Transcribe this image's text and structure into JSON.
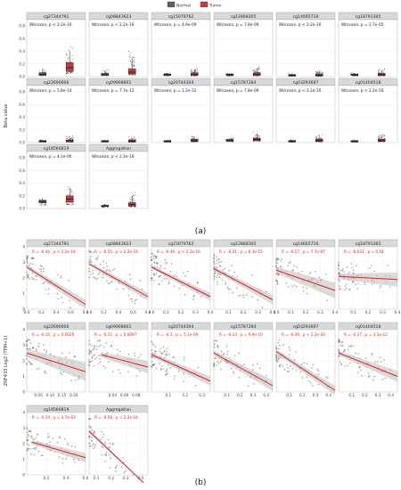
{
  "colors": {
    "normal": "#5f5f5f",
    "tumor": "#c23c3c",
    "strip": "#d9d9d9",
    "grid": "#ebebeb",
    "fit": "#e02020",
    "band": "#bdbdbd"
  },
  "panel_labels": {
    "a": "(a)",
    "b": "(b)"
  },
  "chart_data": [
    {
      "type": "box",
      "legend": {
        "entries": [
          "Normal",
          "Tumor"
        ],
        "placement": "top"
      },
      "ylabel": "Beta value",
      "ylim": [
        0,
        0.9
      ],
      "yticks": [
        "0.0",
        "0.2",
        "0.4",
        "0.6",
        "0.8"
      ],
      "panels": [
        {
          "name": "cg27344791",
          "stat": "Wilcoxon, p < 2.2e-16",
          "normal": {
            "q1": 0.02,
            "median": 0.04,
            "q3": 0.06,
            "whisker_high": 0.12
          },
          "tumor": {
            "q1": 0.08,
            "median": 0.14,
            "q3": 0.22,
            "whisker_high": 0.4
          }
        },
        {
          "name": "cg08843623",
          "stat": "Wilcoxon, p < 2.2e-16",
          "normal": {
            "q1": 0.02,
            "median": 0.03,
            "q3": 0.05,
            "whisker_high": 0.1
          },
          "tumor": {
            "q1": 0.04,
            "median": 0.07,
            "q3": 0.12,
            "whisker_high": 0.3
          }
        },
        {
          "name": "cg15079762",
          "stat": "Wilcoxon, p = 4.9e-09",
          "normal": {
            "q1": 0.02,
            "median": 0.03,
            "q3": 0.04,
            "whisker_high": 0.06
          },
          "tumor": {
            "q1": 0.02,
            "median": 0.04,
            "q3": 0.06,
            "whisker_high": 0.12
          }
        },
        {
          "name": "cg12868305",
          "stat": "Wilcoxon, p = 7.8e-09",
          "normal": {
            "q1": 0.02,
            "median": 0.03,
            "q3": 0.04,
            "whisker_high": 0.06
          },
          "tumor": {
            "q1": 0.02,
            "median": 0.04,
            "q3": 0.06,
            "whisker_high": 0.12
          }
        },
        {
          "name": "cg14665716",
          "stat": "Wilcoxon, p < 2.2e-16",
          "normal": {
            "q1": 0.01,
            "median": 0.02,
            "q3": 0.03,
            "whisker_high": 0.05
          },
          "tumor": {
            "q1": 0.01,
            "median": 0.02,
            "q3": 0.04,
            "whisker_high": 0.08
          }
        },
        {
          "name": "cg18791365",
          "stat": "Wilcoxon, p = 2.7e-05",
          "normal": {
            "q1": 0.02,
            "median": 0.03,
            "q3": 0.04,
            "whisker_high": 0.06
          },
          "tumor": {
            "q1": 0.02,
            "median": 0.03,
            "q3": 0.05,
            "whisker_high": 0.1
          }
        },
        {
          "name": "cg22690006",
          "stat": "Wilcoxon, p = 5.8e-14",
          "normal": {
            "q1": 0.01,
            "median": 0.02,
            "q3": 0.03,
            "whisker_high": 0.04
          },
          "tumor": {
            "q1": 0.01,
            "median": 0.03,
            "q3": 0.04,
            "whisker_high": 0.08
          }
        },
        {
          "name": "cg09908601",
          "stat": "Wilcoxon, p = 7.7e-12",
          "normal": {
            "q1": 0.01,
            "median": 0.02,
            "q3": 0.03,
            "whisker_high": 0.04
          },
          "tumor": {
            "q1": 0.01,
            "median": 0.02,
            "q3": 0.04,
            "whisker_high": 0.07
          }
        },
        {
          "name": "cg20744304",
          "stat": "Wilcoxon, p = 1.2e-12",
          "normal": {
            "q1": 0.01,
            "median": 0.02,
            "q3": 0.03,
            "whisker_high": 0.04
          },
          "tumor": {
            "q1": 0.02,
            "median": 0.03,
            "q3": 0.05,
            "whisker_high": 0.09
          }
        },
        {
          "name": "cg15787284",
          "stat": "Wilcoxon, p = 7.8e-09",
          "normal": {
            "q1": 0.02,
            "median": 0.03,
            "q3": 0.05,
            "whisker_high": 0.07
          },
          "tumor": {
            "q1": 0.03,
            "median": 0.05,
            "q3": 0.07,
            "whisker_high": 0.14
          }
        },
        {
          "name": "cg03293697",
          "stat": "Wilcoxon, p < 2.2e-16",
          "normal": {
            "q1": 0.01,
            "median": 0.02,
            "q3": 0.03,
            "whisker_high": 0.04
          },
          "tumor": {
            "q1": 0.02,
            "median": 0.03,
            "q3": 0.05,
            "whisker_high": 0.1
          }
        },
        {
          "name": "cg01404518",
          "stat": "Wilcoxon, p < 2.2e-16",
          "normal": {
            "q1": 0.01,
            "median": 0.02,
            "q3": 0.03,
            "whisker_high": 0.04
          },
          "tumor": {
            "q1": 0.02,
            "median": 0.03,
            "q3": 0.05,
            "whisker_high": 0.12
          }
        },
        {
          "name": "cg18566819",
          "stat": "Wilcoxon, p = 4.1e-06",
          "normal": {
            "q1": 0.09,
            "median": 0.11,
            "q3": 0.13,
            "whisker_high": 0.17
          },
          "tumor": {
            "q1": 0.1,
            "median": 0.15,
            "q3": 0.2,
            "whisker_high": 0.32
          }
        },
        {
          "name": "Aggregation",
          "stat": "Wilcoxon, p < 2.2e-16",
          "normal": {
            "q1": 0.03,
            "median": 0.04,
            "q3": 0.05,
            "whisker_high": 0.07
          },
          "tumor": {
            "q1": 0.04,
            "median": 0.06,
            "q3": 0.09,
            "whisker_high": 0.2
          }
        }
      ]
    },
    {
      "type": "scatter",
      "ylabel": "ZNF433 Log2 (TPM+1)",
      "ylim": [
        0,
        4
      ],
      "yticks": [
        "0",
        "1",
        "2",
        "3",
        "4"
      ],
      "panels": [
        {
          "name": "cg27344791",
          "stat": "R = -0.44 , p < 2.2e-16",
          "xlim": [
            0,
            0.8
          ],
          "xticks": [
            "0.0",
            "0.2",
            "0.4",
            "0.6",
            "0.8"
          ],
          "fit": [
            [
              0.0,
              2.7
            ],
            [
              0.8,
              0.3
            ]
          ],
          "band": 0.3
        },
        {
          "name": "cg08843623",
          "stat": "R = -0.55 , p < 2.2e-16",
          "xlim": [
            0,
            0.8
          ],
          "xticks": [
            "0.0",
            "0.2",
            "0.4",
            "0.6",
            "0.8"
          ],
          "fit": [
            [
              0.0,
              2.9
            ],
            [
              0.8,
              0.8
            ]
          ],
          "band": 0.25
        },
        {
          "name": "cg15079762",
          "stat": "R = -0.44 , p < 2.2e-16",
          "xlim": [
            0,
            0.4
          ],
          "xticks": [
            "0.0",
            "0.1",
            "0.2",
            "0.3",
            "0.4"
          ],
          "fit": [
            [
              0.0,
              2.7
            ],
            [
              0.4,
              0.8
            ]
          ],
          "band": 0.25
        },
        {
          "name": "cg12868305",
          "stat": "R = -0.41 , p = 6.3e-15",
          "xlim": [
            0,
            0.4
          ],
          "xticks": [
            "0.1",
            "0.2",
            "0.3",
            "0.4"
          ],
          "fit": [
            [
              0.0,
              2.6
            ],
            [
              0.4,
              0.6
            ]
          ],
          "band": 0.3
        },
        {
          "name": "cg14665716",
          "stat": "R = -0.27 , p = 7.7e-07",
          "xlim": [
            0,
            0.4
          ],
          "xticks": [
            "0.0",
            "0.1",
            "0.2",
            "0.3",
            "0.4"
          ],
          "fit": [
            [
              0.0,
              2.5
            ],
            [
              0.4,
              1.2
            ]
          ],
          "band": 0.5
        },
        {
          "name": "cg18791365",
          "stat": "R = -0.033 , p = 0.54",
          "xlim": [
            0,
            0.4
          ],
          "xticks": [
            "0.1",
            "0.2",
            "0.3",
            "0.4"
          ],
          "fit": [
            [
              0.0,
              2.1
            ],
            [
              0.4,
              1.9
            ]
          ],
          "band": 0.45
        },
        {
          "name": "cg22690006",
          "stat": "R = -0.16 , p = 0.0026",
          "xlim": [
            0,
            0.25
          ],
          "xticks": [
            "0.05",
            "0.10",
            "0.15",
            "0.20"
          ],
          "fit": [
            [
              0.0,
              2.5
            ],
            [
              0.25,
              1.3
            ]
          ],
          "band": 0.6
        },
        {
          "name": "cg09908601",
          "stat": "R = -0.15 , p = 0.0097",
          "xlim": [
            0,
            0.1
          ],
          "xticks": [
            "0.04",
            "0.06",
            "0.08"
          ],
          "fit": [
            [
              0.02,
              2.4
            ],
            [
              0.1,
              1.6
            ]
          ],
          "band": 0.4
        },
        {
          "name": "cg20744304",
          "stat": "R = -0.3 , p = 5.1e-09",
          "xlim": [
            0,
            0.35
          ],
          "xticks": [
            "0.1",
            "0.2",
            "0.3"
          ],
          "fit": [
            [
              0.0,
              2.4
            ],
            [
              0.35,
              0.7
            ]
          ],
          "band": 0.3
        },
        {
          "name": "cg15787284",
          "stat": "R = -0.33 , p = 9.9e-10",
          "xlim": [
            0,
            0.45
          ],
          "xticks": [
            "0.1",
            "0.2",
            "0.3",
            "0.4"
          ],
          "fit": [
            [
              0.0,
              2.5
            ],
            [
              0.45,
              0.4
            ]
          ],
          "band": 0.35
        },
        {
          "name": "cg03293697",
          "stat": "R = -0.49 , p < 2.2e-16",
          "xlim": [
            0,
            0.45
          ],
          "xticks": [
            "0.1",
            "0.2",
            "0.3",
            "0.4"
          ],
          "fit": [
            [
              0.0,
              2.6
            ],
            [
              0.45,
              0.1
            ]
          ],
          "band": 0.3
        },
        {
          "name": "cg01404518",
          "stat": "R = -0.37 , p = 3.1e-12",
          "xlim": [
            0,
            0.45
          ],
          "xticks": [
            "0.1",
            "0.2",
            "0.3",
            "0.4"
          ],
          "fit": [
            [
              0.0,
              2.5
            ],
            [
              0.45,
              1.0
            ]
          ],
          "band": 0.35
        },
        {
          "name": "cg18566819",
          "stat": "R = -0.19 , p = 3.7e-03",
          "xlim": [
            0,
            0.6
          ],
          "xticks": [
            "0.2",
            "0.4",
            "0.6"
          ],
          "fit": [
            [
              0.05,
              2.1
            ],
            [
              0.6,
              1.1
            ]
          ],
          "band": 0.3
        },
        {
          "name": "Aggregation",
          "stat": "R = -0.58 , p < 2.2e-16",
          "xlim": [
            0.05,
            0.45
          ],
          "xticks": [
            "0.1",
            "0.2",
            "0.3",
            "0.4"
          ],
          "fit": [
            [
              0.05,
              2.8
            ],
            [
              0.42,
              -1.0
            ]
          ],
          "band": 0.3
        }
      ]
    }
  ]
}
